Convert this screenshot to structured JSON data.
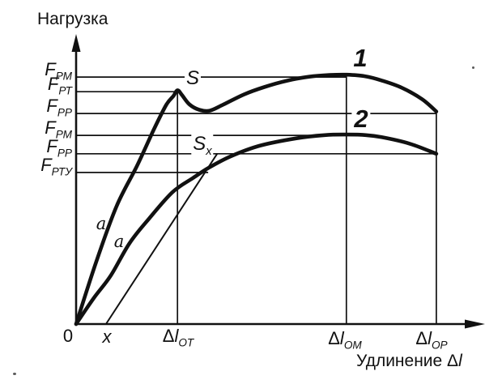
{
  "figure": {
    "y_axis_title": "Нагрузка",
    "x_axis_title_prefix": "Удлинение Δ",
    "x_axis_title_symbol": "l",
    "origin_label": "0",
    "offset_distance_label": "x"
  },
  "point_labels": {
    "curve1": "1",
    "curve2": "2",
    "upper_yield_point": "S",
    "proof_point_main": "S",
    "proof_point_sub": "x",
    "angle_curve1": "a",
    "angle_curve2": "a"
  },
  "colors": {
    "ink": "#111111",
    "background": "#ffffff"
  },
  "chart_data": {
    "type": "line",
    "title": "",
    "ylabel": "Нагрузка",
    "xlabel": "Удлинение Δl",
    "axes_numeric": false,
    "units_note": "schematic diagram, no numeric scale printed; coordinates are relative 0-100 of plotted extent",
    "xlim": [
      0,
      100
    ],
    "ylim": [
      0,
      100
    ],
    "grid": false,
    "series": [
      {
        "name": "1",
        "role": "specimen-curve",
        "points": [
          [
            0,
            0
          ],
          [
            5,
            22
          ],
          [
            9.9,
            41
          ],
          [
            14.9,
            55
          ],
          [
            19,
            67.6
          ],
          [
            22,
            76.1
          ],
          [
            23.8,
            79.3
          ],
          [
            24.8,
            81.3
          ],
          [
            25.9,
            79.6
          ],
          [
            27.7,
            76.4
          ],
          [
            30.1,
            74.5
          ],
          [
            32.7,
            74.2
          ],
          [
            36,
            76.3
          ],
          [
            41,
            79.8
          ],
          [
            46,
            82.4
          ],
          [
            51.5,
            84.6
          ],
          [
            57,
            86
          ],
          [
            62,
            86.6
          ],
          [
            66.1,
            86.7
          ],
          [
            70.5,
            86.2
          ],
          [
            74.7,
            84.7
          ],
          [
            79.6,
            82.2
          ],
          [
            84.6,
            78.2
          ],
          [
            88.1,
            73.9
          ]
        ]
      },
      {
        "name": "2",
        "role": "specimen-curve",
        "points": [
          [
            0,
            0
          ],
          [
            4.3,
            9
          ],
          [
            8.5,
            16.9
          ],
          [
            13.1,
            28.2
          ],
          [
            17.8,
            36.6
          ],
          [
            23.6,
            45.9
          ],
          [
            28.5,
            50.7
          ],
          [
            32.5,
            54.4
          ],
          [
            37.8,
            58.3
          ],
          [
            44.9,
            62
          ],
          [
            53.9,
            64.6
          ],
          [
            60.8,
            65.7
          ],
          [
            66.1,
            65.9
          ],
          [
            70.9,
            65.7
          ],
          [
            74.7,
            65
          ],
          [
            81.6,
            62.7
          ],
          [
            88.1,
            59.2
          ]
        ]
      },
      {
        "name": "offset line from x",
        "role": "construction",
        "points": [
          [
            7.3,
            0
          ],
          [
            34.5,
            59.2
          ]
        ]
      }
    ],
    "y_reference_levels": [
      {
        "label_main": "F",
        "label_sub": "РМ",
        "y": 85.9,
        "x_end": 66.1
      },
      {
        "label_main": "F",
        "label_sub": "РТ",
        "y": 80.8,
        "x_end": 24.8
      },
      {
        "label_main": "F",
        "label_sub": "РР",
        "y": 73.2,
        "x_end": 88.1
      },
      {
        "label_main": "F",
        "label_sub": "РМ",
        "y": 65.6,
        "x_end": 66.1
      },
      {
        "label_main": "F",
        "label_sub": "РР",
        "y": 59.2,
        "x_end": 88.1
      },
      {
        "label_main": "F",
        "label_sub": "РТУ",
        "y": 52.7,
        "x_end": 32.3
      }
    ],
    "x_reference_lines": [
      {
        "prefix": "Δ",
        "symbol": "l",
        "sub": "ОТ",
        "x": 24.8,
        "y_top": 81.3
      },
      {
        "prefix": "Δ",
        "symbol": "l",
        "sub": "ОМ",
        "x": 66.1,
        "y_top": 86.7
      },
      {
        "prefix": "Δ",
        "symbol": "l",
        "sub": "ОР",
        "x": 88.1,
        "y_top": 73.9
      }
    ],
    "annotations": [
      {
        "text": "S",
        "x": 24.8,
        "y": 81.3
      },
      {
        "text": "Sx",
        "x": 32.5,
        "y": 54.4
      },
      {
        "text": "1",
        "x": 69.3,
        "y": 92.4
      },
      {
        "text": "2",
        "x": 69.5,
        "y": 70.4
      },
      {
        "text": "a",
        "x": 6.1,
        "y": 34.4
      },
      {
        "text": "a",
        "x": 10.3,
        "y": 28.2
      }
    ]
  }
}
